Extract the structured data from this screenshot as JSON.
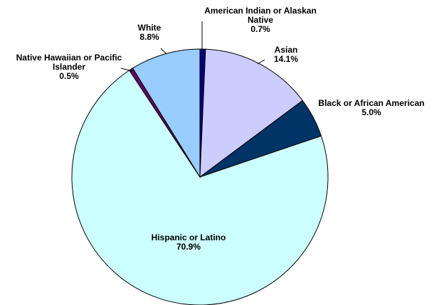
{
  "chart_data": {
    "type": "pie",
    "title": "",
    "start_angle_deg": 0,
    "direction": "clockwise",
    "slices": [
      {
        "label": "American Indian or Alaskan Native",
        "label_lines": [
          "American Indian or Alaskan",
          "Native"
        ],
        "value": 0.7,
        "value_text": "0.7%",
        "color": "#000080"
      },
      {
        "label": "Asian",
        "label_lines": [
          "Asian"
        ],
        "value": 14.1,
        "value_text": "14.1%",
        "color": "#CCCCFF"
      },
      {
        "label": "Black or African American",
        "label_lines": [
          "Black or African American"
        ],
        "value": 5.0,
        "value_text": "5.0%",
        "color": "#003366"
      },
      {
        "label": "Hispanic or Latino",
        "label_lines": [
          "Hispanic or Latino"
        ],
        "value": 70.9,
        "value_text": "70.9%",
        "color": "#CCFFFF"
      },
      {
        "label": "Native Hawaiian or Pacific Islander",
        "label_lines": [
          "Native Hawaiian or Pacific",
          "Islander"
        ],
        "value": 0.5,
        "value_text": "0.5%",
        "color": "#660066"
      },
      {
        "label": "White",
        "label_lines": [
          "White"
        ],
        "value": 8.8,
        "value_text": "8.8%",
        "color": "#99CCFF"
      }
    ]
  }
}
